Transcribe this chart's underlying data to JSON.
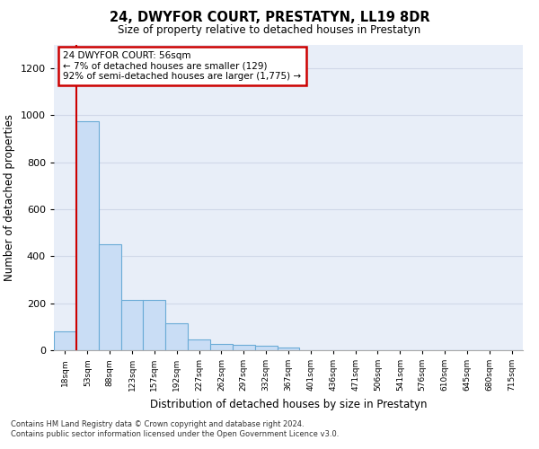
{
  "title": "24, DWYFOR COURT, PRESTATYN, LL19 8DR",
  "subtitle": "Size of property relative to detached houses in Prestatyn",
  "xlabel": "Distribution of detached houses by size in Prestatyn",
  "ylabel": "Number of detached properties",
  "bin_labels": [
    "18sqm",
    "53sqm",
    "88sqm",
    "123sqm",
    "157sqm",
    "192sqm",
    "227sqm",
    "262sqm",
    "297sqm",
    "332sqm",
    "367sqm",
    "401sqm",
    "436sqm",
    "471sqm",
    "506sqm",
    "541sqm",
    "576sqm",
    "610sqm",
    "645sqm",
    "680sqm",
    "715sqm"
  ],
  "bar_values": [
    80,
    975,
    450,
    215,
    215,
    115,
    45,
    25,
    22,
    18,
    10,
    0,
    0,
    0,
    0,
    0,
    0,
    0,
    0,
    0,
    0
  ],
  "bar_color": "#c9ddf5",
  "bar_edge_color": "#6aabd6",
  "ylim": [
    0,
    1300
  ],
  "yticks": [
    0,
    200,
    400,
    600,
    800,
    1000,
    1200
  ],
  "property_line_x": 1.0,
  "annotation_line1": "24 DWYFOR COURT: 56sqm",
  "annotation_line2": "← 7% of detached houses are smaller (129)",
  "annotation_line3": "92% of semi-detached houses are larger (1,775) →",
  "annotation_box_color": "#ffffff",
  "annotation_border_color": "#cc0000",
  "property_line_color": "#cc0000",
  "footer_line1": "Contains HM Land Registry data © Crown copyright and database right 2024.",
  "footer_line2": "Contains public sector information licensed under the Open Government Licence v3.0.",
  "grid_color": "#d0d8e8",
  "background_color": "#e8eef8"
}
